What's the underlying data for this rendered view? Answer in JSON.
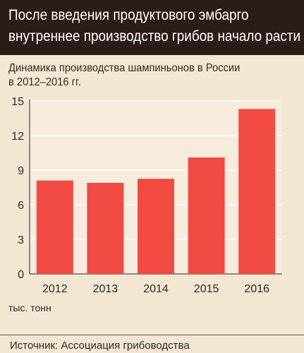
{
  "header": {
    "line1": "После введения продуктового эмбарго",
    "line2": "внутреннее производство грибов начало расти"
  },
  "subtitle": {
    "line1": "Динамика производства шампиньонов в России",
    "line2": "в 2012–2016 гг."
  },
  "unit_label": "тыс. тонн",
  "source": "Источник: Ассоциация грибоводства",
  "colors": {
    "bar": "#f04a43",
    "background": "#f3e6d3",
    "header": "#2b1c1a",
    "grid": "#ffffff"
  },
  "chart_data": {
    "type": "bar",
    "categories": [
      "2012",
      "2013",
      "2014",
      "2015",
      "2016"
    ],
    "values": [
      8.1,
      7.9,
      8.25,
      10.1,
      14.3
    ],
    "ylim": [
      0,
      15
    ],
    "yticks": [
      "0",
      "3",
      "6",
      "9",
      "12",
      "15"
    ],
    "grid": true
  }
}
